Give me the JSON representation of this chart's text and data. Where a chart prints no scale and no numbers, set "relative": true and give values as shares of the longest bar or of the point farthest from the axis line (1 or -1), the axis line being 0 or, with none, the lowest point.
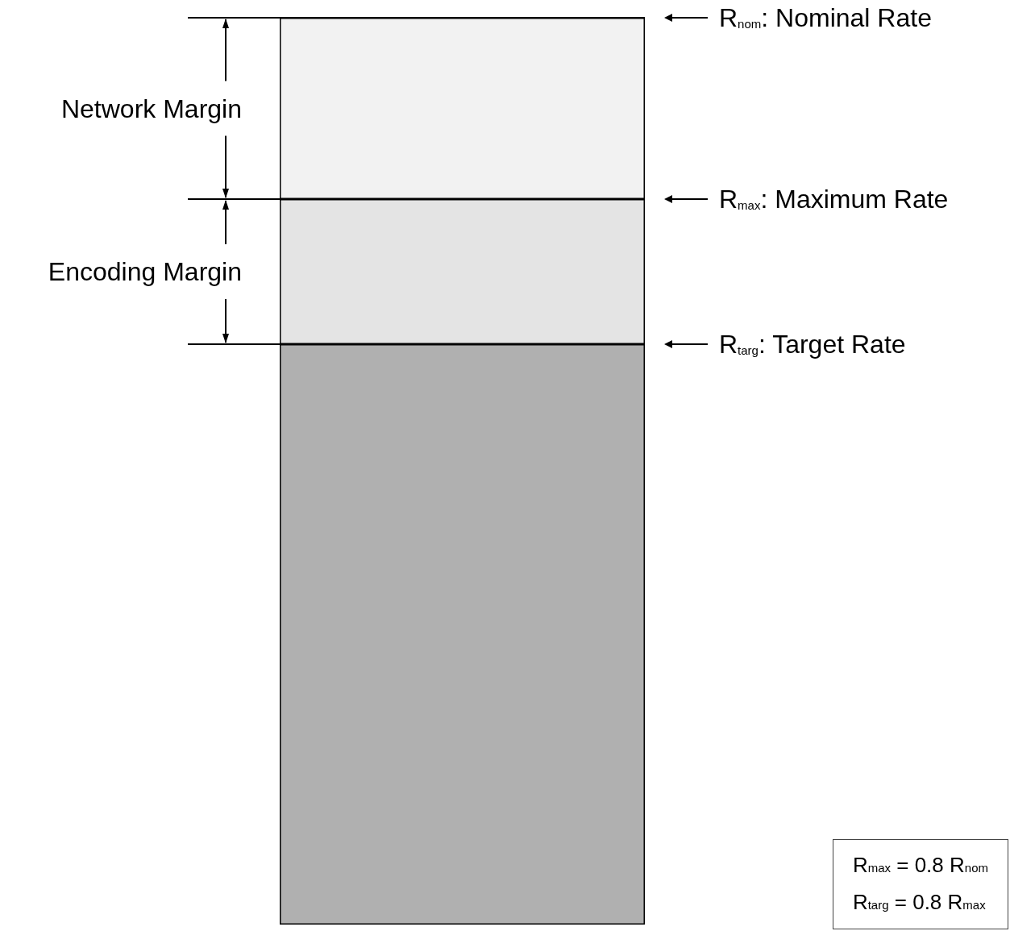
{
  "chart_data": {
    "type": "bar",
    "stacked": true,
    "relative": true,
    "categories": [
      null
    ],
    "series": [
      {
        "color": "#b0b0b0",
        "values": [
          0.64
        ]
      },
      {
        "name": "Encoding Margin",
        "color": "#e4e4e4",
        "values": [
          0.16
        ]
      },
      {
        "name": "Network Margin",
        "color": "#f2f2f2",
        "values": [
          0.2
        ]
      }
    ],
    "ref_lines": [
      {
        "axis": "y",
        "value": 1,
        "label": "R$_{nom}$: Nominal Rate",
        "color": "#000000"
      },
      {
        "axis": "y",
        "value": 0.8,
        "label": "R$_{max}$: Maximum Rate",
        "color": "#000000"
      },
      {
        "axis": "y",
        "value": 0.64,
        "label": "R$_{targ}$: Target Rate",
        "color": "#000000"
      }
    ],
    "annotations": [
      "R$_{max}$ = 0.8 R$_{nom}$",
      "R$_{targ}$ = 0.8 R$_{max}$"
    ]
  }
}
